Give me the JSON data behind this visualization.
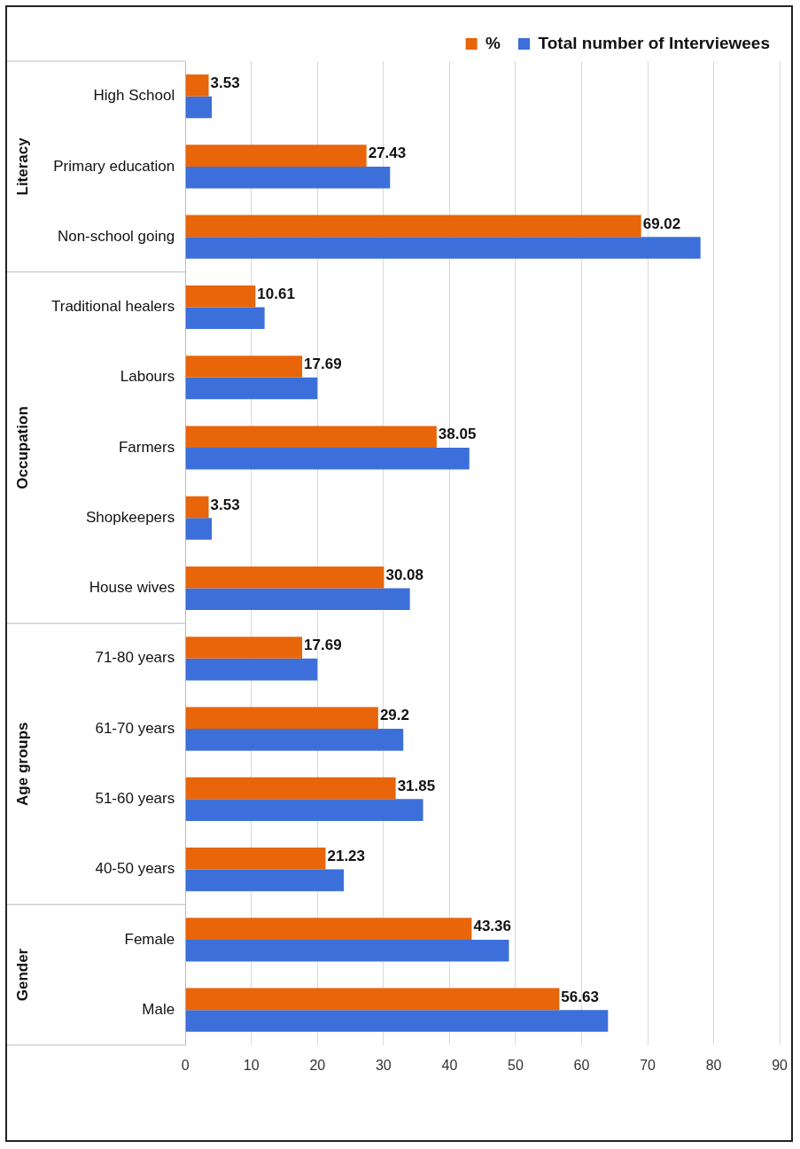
{
  "chart_data": {
    "type": "bar",
    "orientation": "horizontal",
    "categories": [
      "High School",
      "Primary education",
      "Non-school going",
      "Traditional healers",
      "Labours",
      "Farmers",
      "Shopkeepers",
      "House wives",
      "71-80 years",
      "61-70 years",
      "51-60 years",
      "40-50 years",
      "Female",
      "Male"
    ],
    "series": [
      {
        "name": "%",
        "color": "#e8650a",
        "values": [
          3.53,
          27.43,
          69.02,
          10.61,
          17.69,
          38.05,
          3.53,
          30.08,
          17.69,
          29.2,
          31.85,
          21.23,
          43.36,
          56.63
        ],
        "value_labels": [
          "3.53",
          "27.43",
          "69.02",
          "10.61",
          "17.69",
          "38.05",
          "3.53",
          "30.08",
          "17.69",
          "29.2",
          "31.85",
          "21.23",
          "43.36",
          "56.63"
        ]
      },
      {
        "name": "Total number of Interviewees",
        "color": "#3c6fd9",
        "values": [
          4,
          31,
          78,
          12,
          20,
          43,
          4,
          34,
          20,
          33,
          36,
          24,
          49,
          64
        ]
      }
    ],
    "xlim": [
      0,
      90
    ],
    "xticks": [
      0,
      10,
      20,
      30,
      40,
      50,
      60,
      70,
      80,
      90
    ],
    "grid": "x",
    "legend": "top right",
    "annotations": [
      "Literacy",
      "Occupation",
      "Age groups",
      "Gender"
    ]
  }
}
